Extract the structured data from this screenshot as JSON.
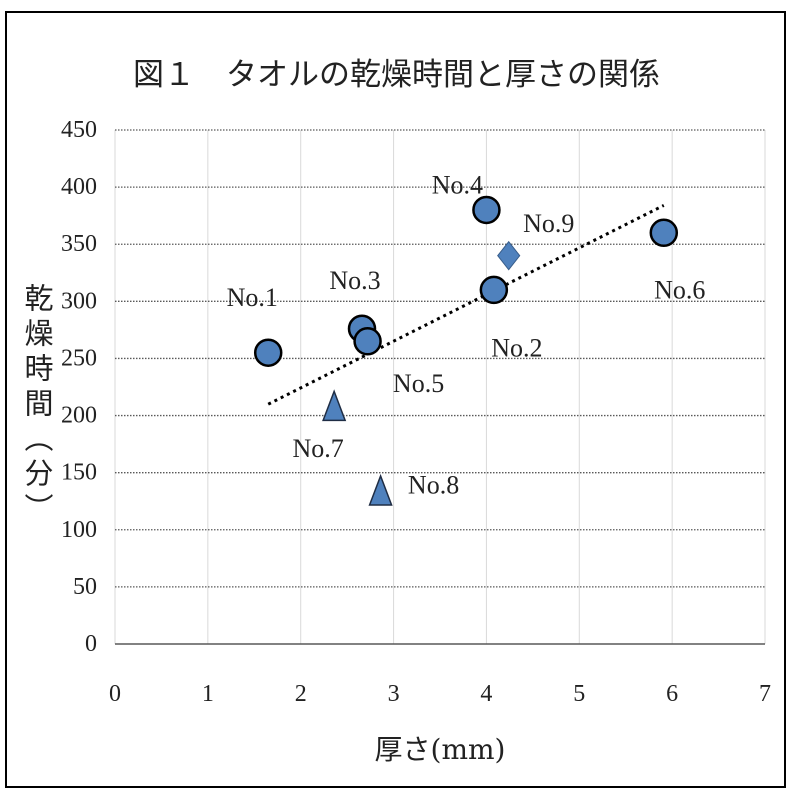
{
  "chart_data": {
    "type": "scatter",
    "title": "図１　タオルの乾燥時間と厚さの関係",
    "xlabel": "厚さ(mm)",
    "ylabel": "乾燥時間（分）",
    "xlim": [
      0,
      7
    ],
    "ylim": [
      0,
      450
    ],
    "xticks": [
      0,
      1,
      2,
      3,
      4,
      5,
      6,
      7
    ],
    "yticks": [
      0,
      50,
      100,
      150,
      200,
      250,
      300,
      350,
      400,
      450
    ],
    "grid": {
      "x": true,
      "y": true
    },
    "legend": false,
    "points": [
      {
        "label": "No.1",
        "x": 1.65,
        "y": 255,
        "marker": "circle"
      },
      {
        "label": "No.2",
        "x": 4.08,
        "y": 310,
        "marker": "circle"
      },
      {
        "label": "No.3",
        "x": 2.66,
        "y": 276,
        "marker": "circle"
      },
      {
        "label": "No.4",
        "x": 4.0,
        "y": 380,
        "marker": "circle"
      },
      {
        "label": "No.5",
        "x": 2.72,
        "y": 265,
        "marker": "circle"
      },
      {
        "label": "No.6",
        "x": 5.91,
        "y": 360,
        "marker": "circle"
      },
      {
        "label": "No.7",
        "x": 2.36,
        "y": 208,
        "marker": "triangle"
      },
      {
        "label": "No.8",
        "x": 2.86,
        "y": 134,
        "marker": "triangle"
      },
      {
        "label": "No.9",
        "x": 4.24,
        "y": 340,
        "marker": "diamond"
      }
    ],
    "trendline": {
      "type": "linear"
    },
    "colors": {
      "marker_fill": "#4F81BD",
      "circle_edge": "#000000",
      "triangle_edge": "#1F2D44",
      "diamond_edge": "#385D8A",
      "trendline": "#000000",
      "gridline_horizontal": "#595959",
      "gridline_vertical": "#D9D9D9",
      "axis_line": "#595959",
      "frame": "#000000"
    }
  }
}
